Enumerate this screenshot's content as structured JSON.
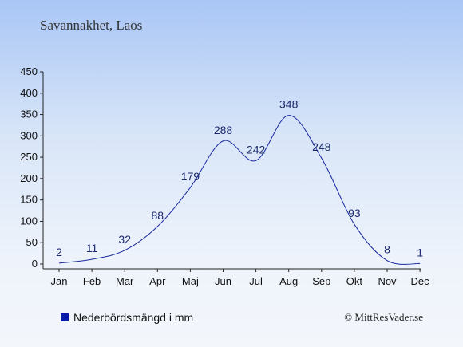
{
  "title": "Savannakhet, Laos",
  "legend_label": "Nederbördsmängd i mm",
  "credit": "© MittResVader.se",
  "colors": {
    "line": "#1a2a9c",
    "legend_swatch": "#0a1aa8",
    "text": "#1c2a6e"
  },
  "chart_data": {
    "type": "line",
    "categories": [
      "Jan",
      "Feb",
      "Mar",
      "Apr",
      "Maj",
      "Jun",
      "Jul",
      "Aug",
      "Sep",
      "Okt",
      "Nov",
      "Dec"
    ],
    "series": [
      {
        "name": "Nederbördsmängd i mm",
        "values": [
          2,
          11,
          32,
          88,
          179,
          288,
          242,
          348,
          248,
          93,
          8,
          1
        ]
      }
    ],
    "data_labels": [
      "2",
      "11",
      "32",
      "88",
      "179",
      "288",
      "242",
      "348",
      "248",
      "93",
      "8",
      "1"
    ],
    "yticks": [
      0,
      50,
      100,
      150,
      200,
      250,
      300,
      350,
      400,
      450
    ],
    "ylim": [
      0,
      450
    ],
    "grid": false,
    "legend_position": "bottom-left"
  }
}
